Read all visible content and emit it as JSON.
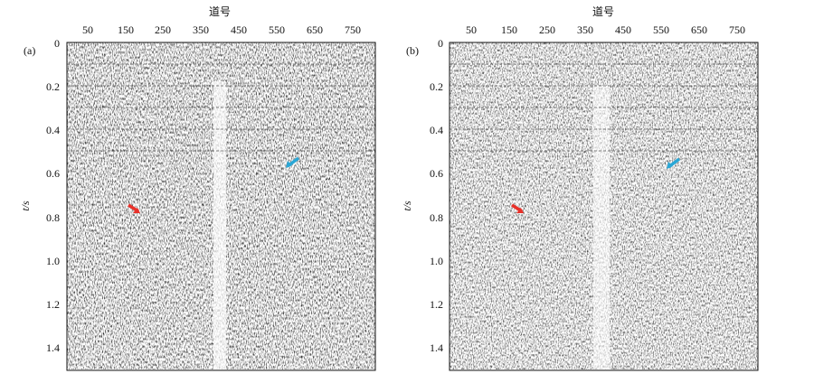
{
  "panels": [
    {
      "label": "(a)",
      "x_axis_title": "道号",
      "x_ticks": [
        "50",
        "150",
        "250",
        "350",
        "450",
        "550",
        "650",
        "750"
      ],
      "y_axis_title": "t/s",
      "y_ticks": [
        "0",
        "0.2",
        "0.4",
        "0.6",
        "0.8",
        "1.0",
        "1.2",
        "1.4"
      ],
      "arrows": [
        {
          "color": "#e8312a",
          "name": "red-arrow"
        },
        {
          "color": "#2aa7d6",
          "name": "blue-arrow"
        }
      ]
    },
    {
      "label": "(b)",
      "x_axis_title": "道号",
      "x_ticks": [
        "50",
        "150",
        "250",
        "350",
        "450",
        "550",
        "650",
        "750"
      ],
      "y_axis_title": "t/s",
      "y_ticks": [
        "0",
        "0.2",
        "0.4",
        "0.6",
        "0.8",
        "1.0",
        "1.2",
        "1.4"
      ],
      "arrows": [
        {
          "color": "#e8312a",
          "name": "red-arrow"
        },
        {
          "color": "#2aa7d6",
          "name": "blue-arrow"
        }
      ]
    }
  ],
  "image_content": {
    "description_kind": "seismic shot gathers, black/white wiggle density",
    "colors": {
      "background": "#ffffff",
      "ink": "#111111",
      "gridline": "#555555"
    }
  }
}
